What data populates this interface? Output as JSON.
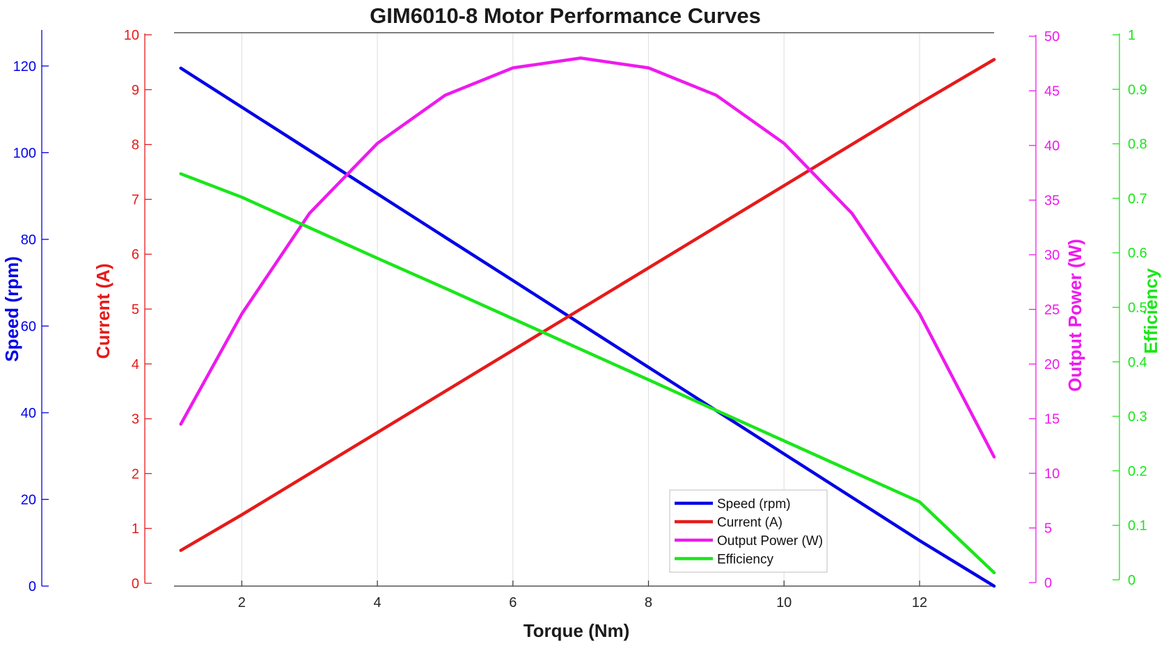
{
  "chart_data": {
    "type": "line",
    "title": "GIM6010-8 Motor Performance Curves",
    "xlabel": "Torque (Nm)",
    "xlim": [
      1,
      13.1
    ],
    "xticks": [
      2,
      4,
      6,
      8,
      10,
      12
    ],
    "grid": "vertical",
    "legend_position": "bottom-center",
    "axes": [
      {
        "id": "speed",
        "label": "Speed (rpm)",
        "color": "#0000e6",
        "ylim": [
          0,
          128
        ],
        "ticks": [
          0,
          20,
          40,
          60,
          80,
          100,
          120
        ]
      },
      {
        "id": "current",
        "label": "Current (A)",
        "color": "#e61a1a",
        "ylim": [
          0,
          10
        ],
        "ticks": [
          0,
          1,
          2,
          3,
          4,
          5,
          6,
          7,
          8,
          9,
          10
        ]
      },
      {
        "id": "power",
        "label": "Output Power (W)",
        "color": "#ee1aee",
        "ylim": [
          0,
          50
        ],
        "ticks": [
          0,
          5,
          10,
          15,
          20,
          25,
          30,
          35,
          40,
          45,
          50
        ]
      },
      {
        "id": "efficiency",
        "label": "Efficiency",
        "color": "#1ae61a",
        "ylim": [
          0,
          1
        ],
        "ticks": [
          0,
          0.1,
          0.2,
          0.3,
          0.4,
          0.5,
          0.6,
          0.7,
          0.8,
          0.9,
          1
        ]
      }
    ],
    "series": [
      {
        "name": "Speed (rpm)",
        "axis": "speed",
        "color": "#0000e6",
        "x": [
          1.1,
          2,
          3,
          4,
          5,
          6,
          7,
          8,
          9,
          10,
          11,
          12,
          13.1
        ],
        "y": [
          119.5,
          110.5,
          100.5,
          90.5,
          80.5,
          70.5,
          60.5,
          50.5,
          40.5,
          30.5,
          20.5,
          10.5,
          0
        ]
      },
      {
        "name": "Current (A)",
        "axis": "current",
        "color": "#e61a1a",
        "x": [
          1.1,
          2,
          3,
          4,
          5,
          6,
          7,
          8,
          9,
          10,
          11,
          12,
          13.1
        ],
        "y": [
          0.6,
          1.25,
          2.0,
          2.75,
          3.5,
          4.25,
          5.0,
          5.75,
          6.5,
          7.25,
          8.0,
          8.75,
          9.55
        ]
      },
      {
        "name": "Output Power (W)",
        "axis": "power",
        "color": "#ee1aee",
        "x": [
          1.1,
          2,
          3,
          4,
          5,
          6,
          7,
          8,
          9,
          10,
          11,
          12,
          13.1
        ],
        "y": [
          14.5,
          24.6,
          33.8,
          40.2,
          44.6,
          47.1,
          48.0,
          47.1,
          44.6,
          40.2,
          33.8,
          24.6,
          11.5
        ]
      },
      {
        "name": "Efficiency",
        "axis": "efficiency",
        "color": "#1ae61a",
        "x": [
          1.1,
          2,
          3,
          4,
          5,
          6,
          7,
          8,
          9,
          10,
          11,
          12,
          13.1
        ],
        "y": [
          0.745,
          0.702,
          0.646,
          0.59,
          0.535,
          0.479,
          0.423,
          0.367,
          0.311,
          0.255,
          0.199,
          0.143,
          0.013
        ]
      }
    ]
  }
}
